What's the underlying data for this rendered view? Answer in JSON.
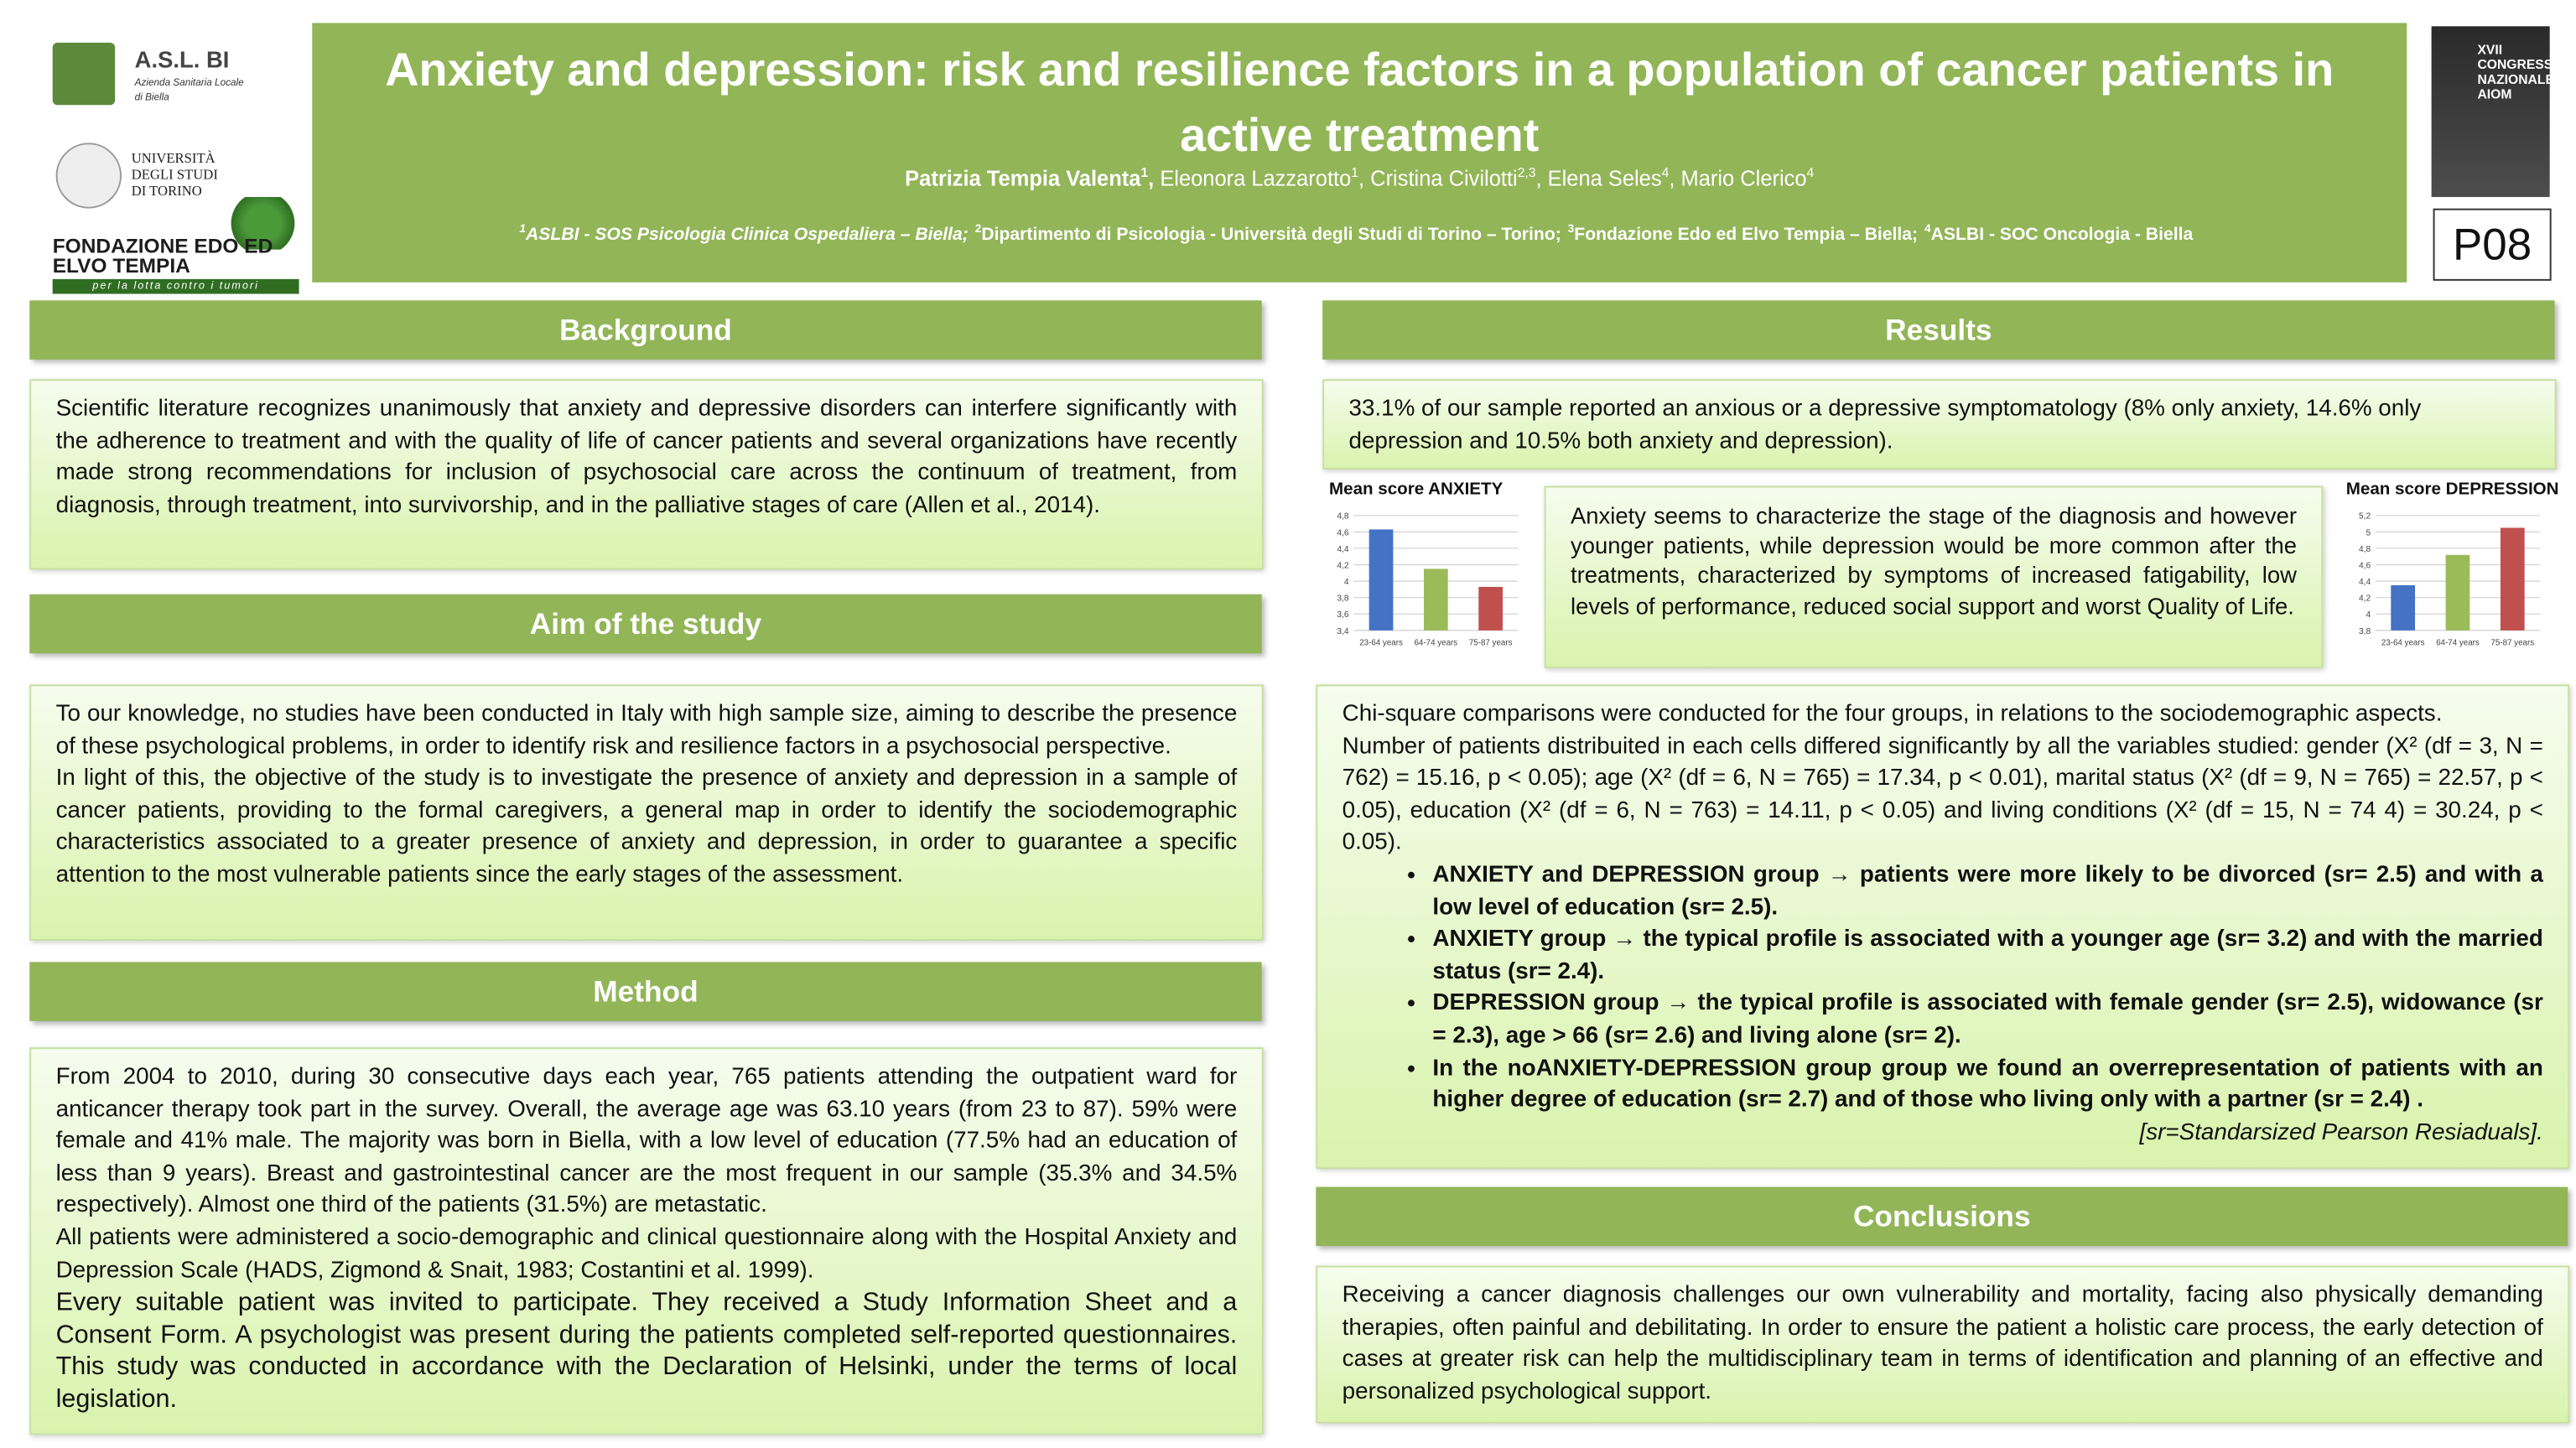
{
  "logos": {
    "asl_name": "A.S.L. BI",
    "asl_sub": "Azienda Sanitaria Locale",
    "asl_sub2": "di Biella",
    "university": "UNIVERSITÀ DEGLI STUDI DI TORINO",
    "foundation": "FONDAZIONE EDO ED ELVO TEMPIA",
    "foundation_motto": "per la lotta contro i tumori",
    "congress": "XVII CONGRESSO NAZIONALE AIOM"
  },
  "header": {
    "title": "Anxiety and depression: risk and resilience factors in a population of cancer patients in active treatment",
    "authors": [
      {
        "name": "Patrizia Tempia Valenta",
        "sup": "1"
      },
      {
        "name": "Eleonora Lazzarotto",
        "sup": "1"
      },
      {
        "name": "Cristina Civilotti",
        "sup": "2,3"
      },
      {
        "name": "Elena Seles",
        "sup": "4"
      },
      {
        "name": "Mario Clerico",
        "sup": "4"
      }
    ],
    "affiliations": [
      {
        "sup": "1",
        "text": "ASLBI - SOS Psicologia Clinica Ospedaliera – Biella;"
      },
      {
        "sup": "2",
        "text": "Dipartimento di Psicologia - Università degli Studi di Torino – Torino;"
      },
      {
        "sup": "3",
        "text": "Fondazione Edo ed Elvo Tempia – Biella;"
      },
      {
        "sup": "4",
        "text": "ASLBI - SOC Oncologia - Biella"
      }
    ],
    "poster_id": "P08"
  },
  "background": {
    "heading": "Background",
    "paragraphs": [
      "Scientific literature recognizes unanimously that anxiety and depressive disorders can interfere significantly with the adherence to treatment and with the quality of life of cancer patients and several organizations have recently made strong recommendations for inclusion of psychosocial care across the continuum of treatment, from diagnosis, through treatment, into survivorship, and in the palliative stages of care (Allen et al., 2014)."
    ]
  },
  "aim": {
    "heading": "Aim of the study",
    "paragraphs": [
      "To our knowledge, no studies have been conducted in Italy with high sample size, aiming to describe the presence of these psychological problems, in order to identify risk and resilience factors in a psychosocial perspective.",
      "In light of this, the objective of the study is to investigate the presence of anxiety and depression in a sample of cancer patients, providing to the formal caregivers, a general map in order to identify the sociodemographic characteristics associated to a greater presence of anxiety and depression, in order to guarantee a specific attention to the most vulnerable patients since the early stages of the assessment."
    ]
  },
  "method": {
    "heading": "Method",
    "paragraphs": [
      "From 2004 to 2010, during 30 consecutive days each year, 765 patients attending the outpatient ward for anticancer therapy took part in the survey. Overall, the average age was 63.10 years (from 23 to 87). 59% were female and 41% male. The majority was born in Biella, with a low level of education (77.5% had an education of less than 9 years). Breast and gastrointestinal cancer are the most frequent in our sample (35.3% and 34.5% respectively). Almost one third of the patients (31.5%) are metastatic.",
      "All patients were administered a socio-demographic and clinical questionnaire along with the Hospital Anxiety and Depression Scale (HADS, Zigmond & Snait, 1983; Costantini et al. 1999).",
      "Every suitable patient was invited to participate. They received a Study Information Sheet and a Consent Form. A psychologist was present during the patients completed self-reported questionnaires.  This study was conducted in accordance with the Declaration of Helsinki, under the terms of local legislation."
    ]
  },
  "results": {
    "heading": "Results",
    "summary": "33.1% of our sample reported an anxious or a depressive symptomatology (8% only anxiety, 14.6% only depression and 10.5% both anxiety and depression).",
    "chart_note": "Anxiety seems to characterize the stage of the diagnosis and however younger patients, while depression would be more common after the treatments, characterized by symptoms of increased fatigability, low levels of performance, reduced social support and worst Quality of Life.",
    "analysis": [
      "Chi-square comparisons were conducted for the four groups, in relations to the sociodemographic aspects.",
      "Number of patients distribuited in each cells differed significantly by all the variables studied: gender (X² (df = 3, N = 762) = 15.16, p < 0.05); age (X² (df = 6, N = 765) = 17.34, p < 0.01), marital status (X² (df = 9, N = 765) = 22.57, p < 0.05), education (X² (df = 6, N = 763) = 14.11, p < 0.05) and living conditions (X² (df = 15, N = 74 4) = 30.24, p < 0.05)."
    ],
    "bullets": [
      "ANXIETY and DEPRESSION group → patients were more likely to be divorced (sr= 2.5) and with a low level of education (sr= 2.5).",
      "ANXIETY group → the typical profile is associated with a younger age (sr= 3.2) and with the married status (sr= 2.4).",
      "DEPRESSION group →  the typical profile is associated with female gender (sr= 2.5), widowance (sr = 2.3), age > 66 (sr= 2.6) and living alone (sr= 2).",
      "In the noANXIETY-DEPRESSION group group we found an overrepresentation of patients with an higher degree of education (sr= 2.7) and of those who living only with a partner (sr = 2.4) ."
    ],
    "note": "[sr=Standarsized Pearson Resiaduals]."
  },
  "conclusions": {
    "heading": "Conclusions",
    "paragraphs": [
      "Receiving a cancer diagnosis challenges our own vulnerability and mortality, facing also physically demanding therapies, often painful and debilitating. In order to ensure the patient a holistic care process, the early detection of cases at greater risk can help the multidisciplinary team in terms of identification and planning of an effective and personalized psychological support."
    ]
  },
  "chart_data": [
    {
      "type": "bar",
      "title": "Mean score ANXIETY",
      "categories": [
        "23-64 years",
        "64-74 years",
        "75-87 years"
      ],
      "values": [
        4.63,
        4.15,
        3.93
      ],
      "colors": [
        "#4472c4",
        "#9bbb59",
        "#c0504d"
      ],
      "ylim": [
        3.4,
        4.8
      ],
      "yticks": [
        {
          "value": 3.4,
          "label": "3,4"
        },
        {
          "value": 3.6,
          "label": "3,6"
        },
        {
          "value": 3.8,
          "label": "3,8"
        },
        4,
        {
          "value": 4.2,
          "label": "4,2"
        },
        {
          "value": 4.4,
          "label": "4,4"
        },
        {
          "value": 4.6,
          "label": "4,6"
        },
        {
          "value": 4.8,
          "label": "4,8"
        }
      ],
      "grid": true
    },
    {
      "type": "bar",
      "title": "Mean score DEPRESSION",
      "categories": [
        "23-64 years",
        "64-74 years",
        "75-87 years"
      ],
      "values": [
        4.35,
        4.72,
        5.05
      ],
      "colors": [
        "#4472c4",
        "#9bbb59",
        "#c0504d"
      ],
      "ylim": [
        3.8,
        5.2
      ],
      "yticks": [
        {
          "value": 3.8,
          "label": "3,8"
        },
        4,
        {
          "value": 4.2,
          "label": "4,2"
        },
        {
          "value": 4.4,
          "label": "4,4"
        },
        {
          "value": 4.6,
          "label": "4,6"
        },
        {
          "value": 4.8,
          "label": "4,8"
        },
        5,
        {
          "value": 5.2,
          "label": "5,2"
        }
      ],
      "grid": true
    }
  ]
}
